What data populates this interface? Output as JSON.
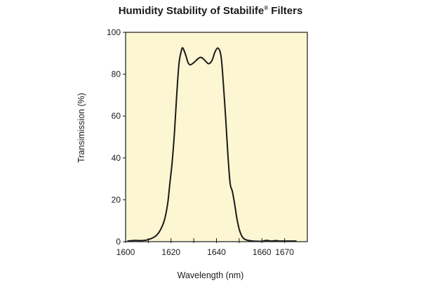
{
  "chart_data": {
    "type": "line",
    "title_main": "Humidity Stability of Stabilife",
    "title_reg": "®",
    "title_tail": " Filters",
    "xlabel": "Wavelength (nm)",
    "ylabel": "Transimission (%)",
    "xlim": [
      1600,
      1680
    ],
    "ylim": [
      0,
      100
    ],
    "x_ticks": [
      1600,
      1620,
      1640,
      1660,
      1670
    ],
    "y_ticks": [
      0,
      20,
      40,
      60,
      80,
      100
    ],
    "minor_x_ticks": [
      1610,
      1630,
      1650
    ],
    "grid": false,
    "legend": "none",
    "plot_background": "#fdf6d3",
    "line_color": "#1a1a1a",
    "series": [
      {
        "x": [
          1601,
          1604,
          1607,
          1610,
          1613,
          1615,
          1617,
          1618.5,
          1619.5,
          1620.5,
          1621.5,
          1622.5,
          1623.5,
          1624.5,
          1625.2,
          1626.5,
          1627.5,
          1628.5,
          1630,
          1632,
          1633.3,
          1635,
          1636.5,
          1638,
          1639.3,
          1640.5,
          1641.5,
          1642.2,
          1643,
          1644,
          1645,
          1646,
          1647,
          1648,
          1649,
          1650,
          1651,
          1652,
          1653,
          1654,
          1656,
          1658,
          1660,
          1662,
          1664,
          1666,
          1668,
          1670,
          1672,
          1675
        ],
        "y": [
          0.3,
          0.6,
          0.5,
          1.0,
          2.5,
          5.0,
          10.0,
          18.0,
          28.0,
          38.0,
          52.0,
          70.0,
          85.0,
          91.0,
          92.5,
          89.0,
          85.5,
          84.5,
          85.5,
          87.5,
          88.0,
          86.5,
          85.0,
          86.5,
          90.5,
          92.5,
          91.0,
          87.0,
          76.0,
          60.0,
          42.0,
          28.0,
          24.0,
          18.0,
          11.0,
          6.0,
          3.0,
          1.5,
          0.9,
          0.6,
          0.3,
          0.2,
          0.2,
          0.6,
          0.3,
          0.5,
          0.3,
          0.3,
          0.3,
          0.3
        ]
      }
    ]
  }
}
